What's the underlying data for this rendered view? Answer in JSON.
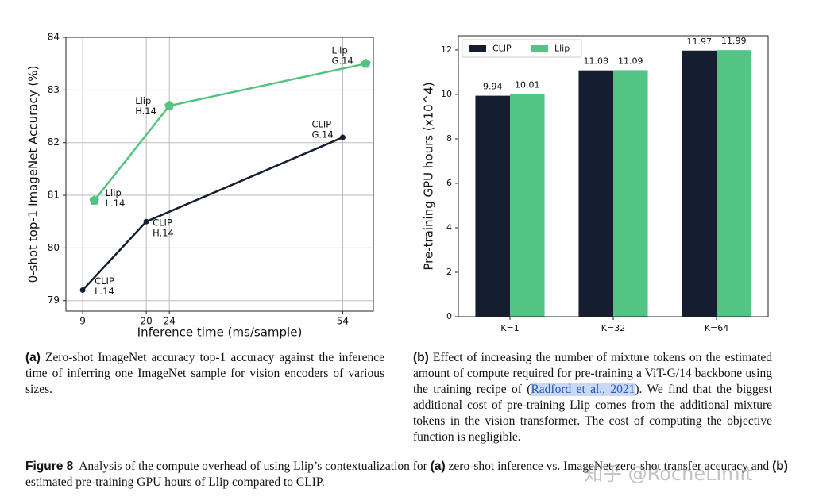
{
  "chart_data": [
    {
      "type": "line",
      "x_label": "Inference time (ms/sample)",
      "y_label": "0-shot top-1 ImageNet Accuracy (%)",
      "xlim": [
        6.1,
        59.3
      ],
      "ylim": [
        78.8,
        84.0
      ],
      "xticks": [
        9,
        20,
        24,
        54
      ],
      "yticks": [
        79,
        80,
        81,
        82,
        83,
        84
      ],
      "grid": true,
      "series": [
        {
          "color": "#141e30",
          "marker": "circle",
          "x": [
            9,
            20,
            54
          ],
          "values": [
            79.2,
            80.5,
            82.1
          ],
          "labels": [
            [
              "CLIP",
              "L.14"
            ],
            [
              "CLIP",
              "H.14"
            ],
            [
              "CLIP",
              "G.14"
            ]
          ]
        },
        {
          "color": "#52c47f",
          "marker": "pentagon",
          "x": [
            11,
            24,
            58
          ],
          "values": [
            80.9,
            82.7,
            83.5
          ],
          "labels": [
            [
              "Llip",
              "L.14"
            ],
            [
              "Llip",
              "H.14"
            ],
            [
              "Llip",
              "G.14"
            ]
          ]
        }
      ]
    },
    {
      "type": "bar",
      "y_label": "Pre-training GPU hours (x10^4)",
      "categories": [
        "K=1",
        "K=32",
        "K=64"
      ],
      "ylim": [
        0,
        12.64
      ],
      "yticks": [
        0,
        2,
        4,
        6,
        8,
        10,
        12
      ],
      "grid": false,
      "legend": "upper left",
      "series": [
        {
          "name": "CLIP",
          "color": "#141e30",
          "values": [
            9.94,
            11.08,
            11.97
          ]
        },
        {
          "name": "Llip",
          "color": "#52c483",
          "values": [
            10.01,
            11.09,
            11.99
          ]
        }
      ]
    }
  ],
  "captions": {
    "a": {
      "tag": "(a)",
      "text": "Zero-shot ImageNet accuracy top-1 accuracy against the inference time of inferring one ImageNet sample for vision encoders of various sizes."
    },
    "b": {
      "tag": "(b)",
      "text_before": "Effect of increasing the number of mixture tokens on the estimated amount of compute required for pre-training a ViT-G/14 backbone using the training recipe of (",
      "citation": "Radford et al., 2021",
      "text_after": "). We find that the biggest additional cost of pre-training Llip comes from the additional mixture tokens in the vision transformer. The cost of computing the objective function is negligible."
    },
    "figure": {
      "tag": "Figure 8",
      "part1": "Analysis of the compute overhead of using Llip’s contextualization for",
      "ref_a": "(a)",
      "part2": "zero-shot inference vs. ImageNet zero-shot transfer accuracy and",
      "ref_b": "(b)",
      "part3": "estimated pre-training GPU hours of Llip compared to CLIP."
    }
  },
  "watermark": "知乎 @RocheLimit"
}
